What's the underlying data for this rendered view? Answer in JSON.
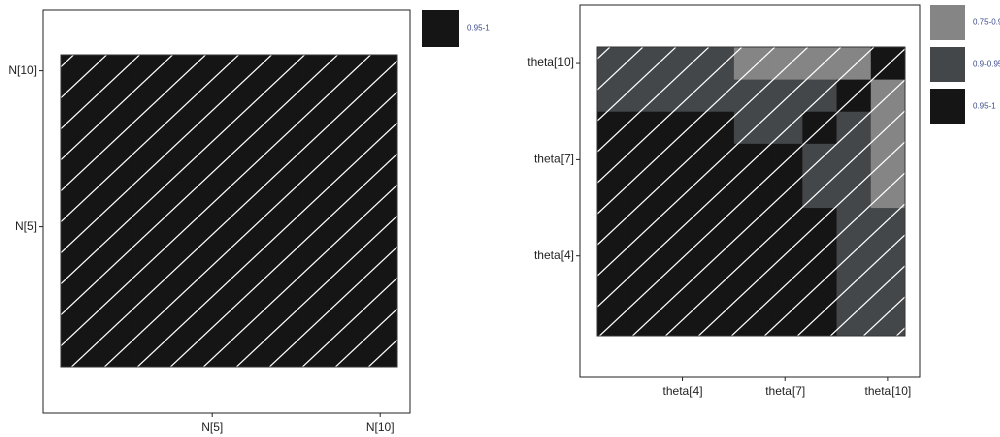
{
  "chart_data": [
    {
      "type": "heatmap",
      "x": [
        null,
        null,
        null,
        null,
        "N[5]",
        null,
        null,
        null,
        null,
        "N[10]"
      ],
      "y": [
        null,
        null,
        null,
        null,
        "N[5]",
        null,
        null,
        null,
        null,
        "N[10]"
      ],
      "levels": [
        {
          "name": "0.95-1",
          "color": "#151515"
        }
      ],
      "z": [
        [
          "0.95-1",
          "0.95-1",
          "0.95-1",
          "0.95-1",
          "0.95-1",
          "0.95-1",
          "0.95-1",
          "0.95-1",
          "0.95-1",
          "0.95-1"
        ],
        [
          "0.95-1",
          "0.95-1",
          "0.95-1",
          "0.95-1",
          "0.95-1",
          "0.95-1",
          "0.95-1",
          "0.95-1",
          "0.95-1",
          "0.95-1"
        ],
        [
          "0.95-1",
          "0.95-1",
          "0.95-1",
          "0.95-1",
          "0.95-1",
          "0.95-1",
          "0.95-1",
          "0.95-1",
          "0.95-1",
          "0.95-1"
        ],
        [
          "0.95-1",
          "0.95-1",
          "0.95-1",
          "0.95-1",
          "0.95-1",
          "0.95-1",
          "0.95-1",
          "0.95-1",
          "0.95-1",
          "0.95-1"
        ],
        [
          "0.95-1",
          "0.95-1",
          "0.95-1",
          "0.95-1",
          "0.95-1",
          "0.95-1",
          "0.95-1",
          "0.95-1",
          "0.95-1",
          "0.95-1"
        ],
        [
          "0.95-1",
          "0.95-1",
          "0.95-1",
          "0.95-1",
          "0.95-1",
          "0.95-1",
          "0.95-1",
          "0.95-1",
          "0.95-1",
          "0.95-1"
        ],
        [
          "0.95-1",
          "0.95-1",
          "0.95-1",
          "0.95-1",
          "0.95-1",
          "0.95-1",
          "0.95-1",
          "0.95-1",
          "0.95-1",
          "0.95-1"
        ],
        [
          "0.95-1",
          "0.95-1",
          "0.95-1",
          "0.95-1",
          "0.95-1",
          "0.95-1",
          "0.95-1",
          "0.95-1",
          "0.95-1",
          "0.95-1"
        ],
        [
          "0.95-1",
          "0.95-1",
          "0.95-1",
          "0.95-1",
          "0.95-1",
          "0.95-1",
          "0.95-1",
          "0.95-1",
          "0.95-1",
          "0.95-1"
        ],
        [
          "0.95-1",
          "0.95-1",
          "0.95-1",
          "0.95-1",
          "0.95-1",
          "0.95-1",
          "0.95-1",
          "0.95-1",
          "0.95-1",
          "0.95-1"
        ]
      ]
    },
    {
      "type": "heatmap",
      "x": [
        null,
        null,
        "theta[4]",
        null,
        null,
        "theta[7]",
        null,
        null,
        "theta[10]"
      ],
      "y": [
        null,
        null,
        "theta[4]",
        null,
        null,
        "theta[7]",
        null,
        null,
        "theta[10]"
      ],
      "levels": [
        {
          "name": "0.75-0.9",
          "color": "#858585"
        },
        {
          "name": "0.9-0.95",
          "color": "#444749"
        },
        {
          "name": "0.95-1",
          "color": "#151515"
        }
      ],
      "z": [
        [
          "0.95-1",
          "0.95-1",
          "0.95-1",
          "0.95-1",
          "0.95-1",
          "0.95-1",
          "0.95-1",
          "0.9-0.95",
          "0.9-0.95"
        ],
        [
          "0.95-1",
          "0.95-1",
          "0.95-1",
          "0.95-1",
          "0.95-1",
          "0.95-1",
          "0.95-1",
          "0.9-0.95",
          "0.9-0.95"
        ],
        [
          "0.95-1",
          "0.95-1",
          "0.95-1",
          "0.95-1",
          "0.95-1",
          "0.95-1",
          "0.95-1",
          "0.9-0.95",
          "0.9-0.95"
        ],
        [
          "0.95-1",
          "0.95-1",
          "0.95-1",
          "0.95-1",
          "0.95-1",
          "0.95-1",
          "0.95-1",
          "0.9-0.95",
          "0.9-0.95"
        ],
        [
          "0.95-1",
          "0.95-1",
          "0.95-1",
          "0.95-1",
          "0.95-1",
          "0.95-1",
          "0.9-0.95",
          "0.9-0.95",
          "0.75-0.9"
        ],
        [
          "0.95-1",
          "0.95-1",
          "0.95-1",
          "0.95-1",
          "0.95-1",
          "0.95-1",
          "0.9-0.95",
          "0.9-0.95",
          "0.75-0.9"
        ],
        [
          "0.95-1",
          "0.95-1",
          "0.95-1",
          "0.95-1",
          "0.9-0.95",
          "0.9-0.95",
          "0.95-1",
          "0.9-0.95",
          "0.75-0.9"
        ],
        [
          "0.9-0.95",
          "0.9-0.95",
          "0.9-0.95",
          "0.9-0.95",
          "0.9-0.95",
          "0.9-0.95",
          "0.9-0.95",
          "0.95-1",
          "0.75-0.9"
        ],
        [
          "0.9-0.95",
          "0.9-0.95",
          "0.9-0.95",
          "0.9-0.95",
          "0.75-0.9",
          "0.75-0.9",
          "0.75-0.9",
          "0.75-0.9",
          "0.95-1"
        ]
      ]
    }
  ]
}
